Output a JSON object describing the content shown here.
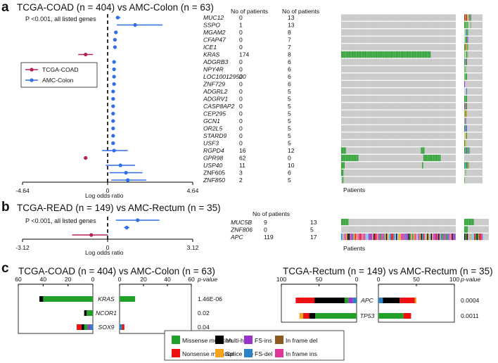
{
  "colors": {
    "tcga": "#b5244f",
    "amc": "#2f6fe8",
    "missense": "#22a02a",
    "multihit": "#000000",
    "fsins": "#9933cc",
    "inframedel": "#8b5a1e",
    "nonsense": "#ee1111",
    "splice": "#f5a51d",
    "fsdel": "#2a82c8",
    "inframeins": "#e0369c",
    "grid": "#d4d4d4"
  },
  "panel_a": {
    "label": "a",
    "title": "TCGA-COAD (n = 404) vs AMC-Colon (n = 63)",
    "pvalue_note": "P <0.001, all listed genes",
    "x_ticks": [
      "-4.64",
      "0",
      "4.64"
    ],
    "xlabel": "Log odds ratio",
    "legend": [
      "TCGA-COAD",
      "AMC-Colon"
    ],
    "col_header_1": "No of patients",
    "col_header_2": "No of patients",
    "patients_label": "Patients",
    "genes": [
      {
        "name": "MUC12",
        "italic": true,
        "n1": "0",
        "n2": "13"
      },
      {
        "name": "SSPO",
        "italic": true,
        "n1": "1",
        "n2": "13"
      },
      {
        "name": "MGAM2",
        "italic": true,
        "n1": "0",
        "n2": "8"
      },
      {
        "name": "CFAP47",
        "italic": true,
        "n1": "0",
        "n2": "7"
      },
      {
        "name": "ICE1",
        "italic": true,
        "n1": "0",
        "n2": "7"
      },
      {
        "name": "KRAS",
        "italic": true,
        "n1": "174",
        "n2": "8"
      },
      {
        "name": "ADGRB3",
        "italic": true,
        "n1": "0",
        "n2": "6"
      },
      {
        "name": "NPY4R",
        "italic": true,
        "n1": "0",
        "n2": "6"
      },
      {
        "name": "LOC100129520",
        "italic": true,
        "n1": "0",
        "n2": "6"
      },
      {
        "name": "ZNF729",
        "italic": true,
        "n1": "0",
        "n2": "6"
      },
      {
        "name": "ADGRL2",
        "italic": true,
        "n1": "0",
        "n2": "5"
      },
      {
        "name": "ADGRV1",
        "italic": true,
        "n1": "0",
        "n2": "5"
      },
      {
        "name": "CASP8AP2",
        "italic": true,
        "n1": "0",
        "n2": "5"
      },
      {
        "name": "CEP295",
        "italic": true,
        "n1": "0",
        "n2": "5"
      },
      {
        "name": "GCN1",
        "italic": true,
        "n1": "0",
        "n2": "5"
      },
      {
        "name": "OR2L5",
        "italic": true,
        "n1": "0",
        "n2": "5"
      },
      {
        "name": "STARD9",
        "italic": true,
        "n1": "0",
        "n2": "5"
      },
      {
        "name": "USF3",
        "italic": true,
        "n1": "0",
        "n2": "5"
      },
      {
        "name": "RGPD4",
        "italic": true,
        "n1": "16",
        "n2": "12"
      },
      {
        "name": "GPR98",
        "italic": true,
        "n1": "62",
        "n2": "0"
      },
      {
        "name": "USP40",
        "italic": true,
        "n1": "11",
        "n2": "10"
      },
      {
        "name": "ZNF605",
        "italic": false,
        "n1": "3",
        "n2": "6"
      },
      {
        "name": "ZNF850",
        "italic": true,
        "n1": "2",
        "n2": "5"
      }
    ],
    "forest": [
      {
        "group": "amc",
        "or": 0.55,
        "lo": 0.45,
        "hi": 0.7
      },
      {
        "group": "amc",
        "or": 1.5,
        "lo": 0.5,
        "hi": 3.0
      },
      {
        "group": "amc",
        "or": 0.45,
        "lo": 0.35,
        "hi": 0.55
      },
      {
        "group": "amc",
        "or": 0.4,
        "lo": 0.3,
        "hi": 0.5
      },
      {
        "group": "amc",
        "or": 0.4,
        "lo": 0.3,
        "hi": 0.5
      },
      {
        "group": "tcga",
        "or": -1.2,
        "lo": -1.6,
        "hi": -0.8
      },
      {
        "group": "amc",
        "or": 0.35,
        "lo": 0.25,
        "hi": 0.45
      },
      {
        "group": "amc",
        "or": 0.35,
        "lo": 0.25,
        "hi": 0.45
      },
      {
        "group": "amc",
        "or": 0.35,
        "lo": 0.25,
        "hi": 0.45
      },
      {
        "group": "amc",
        "or": 0.35,
        "lo": 0.25,
        "hi": 0.45
      },
      {
        "group": "amc",
        "or": 0.3,
        "lo": 0.2,
        "hi": 0.4
      },
      {
        "group": "amc",
        "or": 0.3,
        "lo": 0.2,
        "hi": 0.4
      },
      {
        "group": "amc",
        "or": 0.3,
        "lo": 0.2,
        "hi": 0.4
      },
      {
        "group": "amc",
        "or": 0.3,
        "lo": 0.2,
        "hi": 0.4
      },
      {
        "group": "amc",
        "or": 0.3,
        "lo": 0.2,
        "hi": 0.4
      },
      {
        "group": "amc",
        "or": 0.3,
        "lo": 0.2,
        "hi": 0.4
      },
      {
        "group": "amc",
        "or": 0.3,
        "lo": 0.2,
        "hi": 0.4
      },
      {
        "group": "amc",
        "or": 0.3,
        "lo": 0.2,
        "hi": 0.4
      },
      {
        "group": "amc",
        "or": 0.35,
        "lo": -0.3,
        "hi": 1.1
      },
      {
        "group": "tcga",
        "or": -1.2,
        "lo": -1.3,
        "hi": -1.1
      },
      {
        "group": "amc",
        "or": 0.7,
        "lo": -0.1,
        "hi": 1.5
      },
      {
        "group": "amc",
        "or": 1.0,
        "lo": 0.1,
        "hi": 1.9
      },
      {
        "group": "amc",
        "or": 1.1,
        "lo": 0.2,
        "hi": 2.1
      }
    ]
  },
  "panel_b": {
    "label": "b",
    "title": "TCGA-READ (n = 149) vs AMC-Rectum (n = 35)",
    "pvalue_note": "P <0.001, all listed genes",
    "x_ticks": [
      "-3.12",
      "0",
      "3.12"
    ],
    "xlabel": "Log odds ratio",
    "col_header": "No of patients",
    "patients_label": "Patients",
    "genes": [
      {
        "name": "MUC5B",
        "n1": "9",
        "n2": "13"
      },
      {
        "name": "ZNF806",
        "n1": "0",
        "n2": "5"
      },
      {
        "name": "APC",
        "n1": "119",
        "n2": "17"
      }
    ],
    "forest": [
      {
        "group": "amc",
        "or": 1.1,
        "lo": 0.3,
        "hi": 1.9
      },
      {
        "group": "amc",
        "or": 0.7,
        "lo": 0.6,
        "hi": 0.8
      },
      {
        "group": "tcga",
        "or": -0.6,
        "lo": -1.3,
        "hi": 0.0
      }
    ]
  },
  "panel_c": {
    "label": "c",
    "left": {
      "title": "TCGA-COAD (n = 404) vs AMC-Colon (n = 63)",
      "axis_left_ticks": [
        "60",
        "40",
        "20",
        "0"
      ],
      "axis_right_ticks": [
        "0",
        "20",
        "40",
        "60"
      ],
      "pvalue_header": "p-value",
      "max": 60,
      "rows": [
        {
          "gene": "KRAS",
          "pvalue": "1.46E-06",
          "left": [
            {
              "type": "missense",
              "value": 40
            },
            {
              "type": "multihit",
              "value": 3
            }
          ],
          "right": [
            {
              "type": "missense",
              "value": 13
            }
          ]
        },
        {
          "gene": "NCOR1",
          "pvalue": "0.02",
          "left": [
            {
              "type": "missense",
              "value": 5
            },
            {
              "type": "multihit",
              "value": 2
            }
          ],
          "right": []
        },
        {
          "gene": "SOX9",
          "pvalue": "0.04",
          "left": [
            {
              "type": "fsdel",
              "value": 2
            },
            {
              "type": "fsins",
              "value": 2
            },
            {
              "type": "missense",
              "value": 3
            },
            {
              "type": "multihit",
              "value": 2
            },
            {
              "type": "nonsense",
              "value": 4
            }
          ],
          "right": [
            {
              "type": "fsdel",
              "value": 2
            },
            {
              "type": "nonsense",
              "value": 2
            }
          ]
        }
      ]
    },
    "right": {
      "title": "TCGA-Rectum (n = 149) vs AMC-Rectum (n = 35)",
      "axis_left_ticks": [
        "100",
        "50",
        "0"
      ],
      "axis_right_ticks": [
        "0",
        "50",
        "100"
      ],
      "pvalue_header": "p-value",
      "max": 100,
      "rows": [
        {
          "gene": "APC",
          "pvalue": "0.0004",
          "left": [
            {
              "type": "fsdel",
              "value": 5
            },
            {
              "type": "fsins",
              "value": 6
            },
            {
              "type": "missense",
              "value": 5
            },
            {
              "type": "multihit",
              "value": 40
            },
            {
              "type": "nonsense",
              "value": 25
            }
          ],
          "right": [
            {
              "type": "fsdel",
              "value": 6
            },
            {
              "type": "multihit",
              "value": 22
            },
            {
              "type": "nonsense",
              "value": 20
            },
            {
              "type": "splice",
              "value": 2
            }
          ]
        },
        {
          "gene": "TP53",
          "pvalue": "0.0011",
          "left": [
            {
              "type": "missense",
              "value": 55
            },
            {
              "type": "multihit",
              "value": 8
            },
            {
              "type": "nonsense",
              "value": 8
            },
            {
              "type": "splice",
              "value": 5
            }
          ],
          "right": [
            {
              "type": "missense",
              "value": 33
            },
            {
              "type": "nonsense",
              "value": 10
            }
          ]
        }
      ]
    }
  },
  "legend_c": [
    {
      "type": "missense",
      "label": "Missense mutation"
    },
    {
      "type": "multihit",
      "label": "Multi-hit"
    },
    {
      "type": "fsins",
      "label": "FS-ins"
    },
    {
      "type": "inframedel",
      "label": "In frame del"
    },
    {
      "type": "nonsense",
      "label": "Nonsense mutation"
    },
    {
      "type": "splice",
      "label": "Splice site"
    },
    {
      "type": "fsdel",
      "label": "FS-del"
    },
    {
      "type": "inframeins",
      "label": "In frame ins"
    }
  ]
}
